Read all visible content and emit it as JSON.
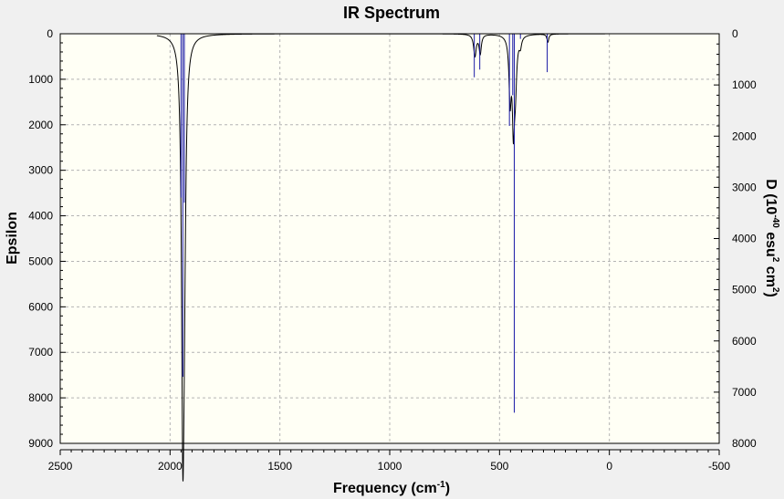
{
  "chart_data": {
    "type": "line",
    "title": "IR Spectrum",
    "xlabel": "Frequency (cm",
    "xlabel_sup": "-1",
    "xlabel_tail": ")",
    "ylabel": "Epsilon",
    "y2label_prefix": "D (10",
    "y2label_sup1": "-40",
    "y2label_mid": " esu",
    "y2label_sup2": "2",
    "y2label_mid2": " cm",
    "y2label_sup3": "2",
    "y2label_tail": ")",
    "xlim": [
      2500,
      -500
    ],
    "ylim": [
      0,
      9000
    ],
    "y2lim": [
      0,
      8000
    ],
    "x_ticks": [
      2500,
      2000,
      1500,
      1000,
      500,
      0,
      -500
    ],
    "y_ticks": [
      0,
      1000,
      2000,
      3000,
      4000,
      5000,
      6000,
      7000,
      8000,
      9000
    ],
    "y2_ticks": [
      0,
      1000,
      2000,
      3000,
      4000,
      5000,
      6000,
      7000,
      8000
    ],
    "grid": true,
    "inverted_y": true,
    "colors": {
      "spectrum": "#000000",
      "sticks": "#1a1aa6",
      "plot_bg": "#fffff5",
      "grid": "#b4b4b4"
    },
    "series": [
      {
        "name": "",
        "kind": "spectrum",
        "lorentzian_peaks": [
          {
            "x": 1942,
            "height": 7750,
            "width": 7
          },
          {
            "x": 1935,
            "height": 3500,
            "width": 8
          },
          {
            "x": 612,
            "height": 480,
            "width": 7
          },
          {
            "x": 588,
            "height": 420,
            "width": 6
          },
          {
            "x": 452,
            "height": 1350,
            "width": 6
          },
          {
            "x": 437,
            "height": 1850,
            "width": 6
          },
          {
            "x": 428,
            "height": 1000,
            "width": 7
          },
          {
            "x": 405,
            "height": 200,
            "width": 6
          },
          {
            "x": 280,
            "height": 180,
            "width": 5
          }
        ],
        "x_range": [
          2060,
          20
        ]
      },
      {
        "name": "",
        "kind": "sticks",
        "axis": "y2",
        "x": [
          1950,
          1942,
          1935,
          615,
          590,
          455,
          440,
          433,
          405,
          283
        ],
        "values": [
          3200,
          6700,
          3300,
          850,
          700,
          1800,
          1200,
          7400,
          100,
          750
        ]
      }
    ]
  }
}
